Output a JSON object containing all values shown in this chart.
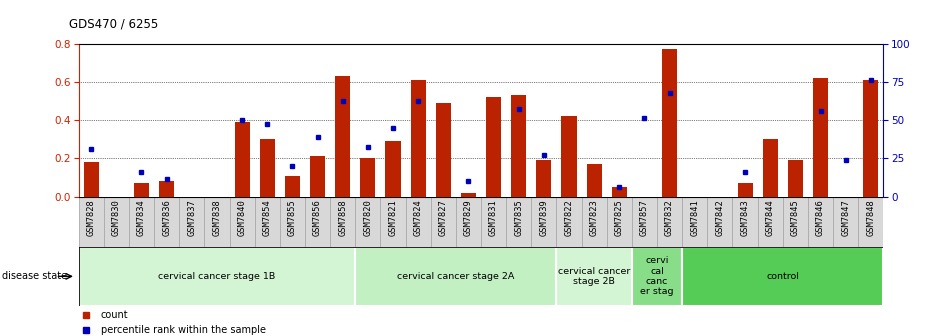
{
  "title": "GDS470 / 6255",
  "samples": [
    "GSM7828",
    "GSM7830",
    "GSM7834",
    "GSM7836",
    "GSM7837",
    "GSM7838",
    "GSM7840",
    "GSM7854",
    "GSM7855",
    "GSM7856",
    "GSM7858",
    "GSM7820",
    "GSM7821",
    "GSM7824",
    "GSM7827",
    "GSM7829",
    "GSM7831",
    "GSM7835",
    "GSM7839",
    "GSM7822",
    "GSM7823",
    "GSM7825",
    "GSM7857",
    "GSM7832",
    "GSM7841",
    "GSM7842",
    "GSM7843",
    "GSM7844",
    "GSM7845",
    "GSM7846",
    "GSM7847",
    "GSM7848"
  ],
  "count_values": [
    0.18,
    0.0,
    0.07,
    0.08,
    0.0,
    0.0,
    0.39,
    0.3,
    0.11,
    0.21,
    0.63,
    0.2,
    0.29,
    0.61,
    0.49,
    0.02,
    0.52,
    0.53,
    0.19,
    0.42,
    0.17,
    0.05,
    0.0,
    0.77,
    0.0,
    0.0,
    0.07,
    0.3,
    0.19,
    0.62,
    0.0,
    0.61
  ],
  "percentile_values": [
    0.25,
    0.0,
    0.13,
    0.09,
    0.0,
    0.0,
    0.4,
    0.38,
    0.16,
    0.31,
    0.5,
    0.26,
    0.36,
    0.5,
    0.0,
    0.08,
    0.0,
    0.46,
    0.22,
    0.0,
    0.0,
    0.05,
    0.41,
    0.54,
    0.0,
    0.0,
    0.13,
    0.0,
    0.0,
    0.45,
    0.19,
    0.61
  ],
  "groups": [
    {
      "label": "cervical cancer stage 1B",
      "start": 0,
      "end": 11,
      "color": "#d4f5d4"
    },
    {
      "label": "cervical cancer stage 2A",
      "start": 11,
      "end": 19,
      "color": "#c2f0c2"
    },
    {
      "label": "cervical cancer\nstage 2B",
      "start": 19,
      "end": 22,
      "color": "#d4f5d4"
    },
    {
      "label": "cervi\ncal\ncanc\ner stag",
      "start": 22,
      "end": 24,
      "color": "#88dd88"
    },
    {
      "label": "control",
      "start": 24,
      "end": 32,
      "color": "#55cc55"
    }
  ],
  "ylim_left": [
    0,
    0.8
  ],
  "ylim_right": [
    0,
    100
  ],
  "yticks_left": [
    0,
    0.2,
    0.4,
    0.6,
    0.8
  ],
  "yticks_right": [
    0,
    25,
    50,
    75,
    100
  ],
  "bar_color": "#bb2200",
  "dot_color": "#0000bb",
  "left_axis_color": "#cc2200",
  "right_axis_color": "#0000bb",
  "cell_bg_color": "#d8d8d8",
  "cell_edge_color": "#aaaaaa"
}
